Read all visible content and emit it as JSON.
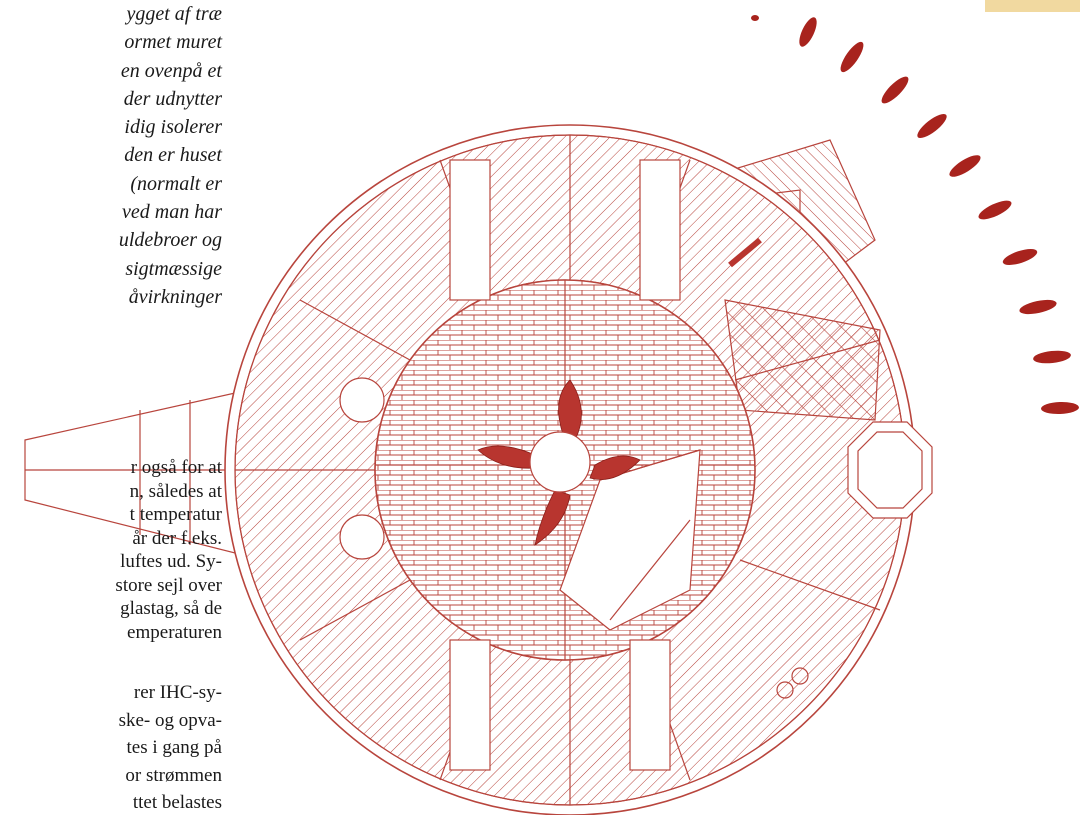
{
  "paragraphs": [
    {
      "lines": [
        "ygget af træ",
        "ormet muret",
        "en ovenpå et",
        "der udnytter",
        "idig isolerer",
        "den er huset",
        "(normalt er",
        "ved man har",
        "uldebroer og",
        "sigtmæssige",
        "åvirkninger"
      ]
    },
    {
      "lines": [
        "r også for at",
        "n, således at",
        "t temperatur",
        "år der f.eks.",
        "luftes ud. Sy-",
        "store sejl over",
        "glastag, så de",
        "emperaturen"
      ]
    },
    {
      "lines": [
        "rer IHC-sy-",
        "ske- og opva-",
        "tes i gang på",
        "or strømmen",
        "ttet belastes"
      ]
    }
  ]
}
